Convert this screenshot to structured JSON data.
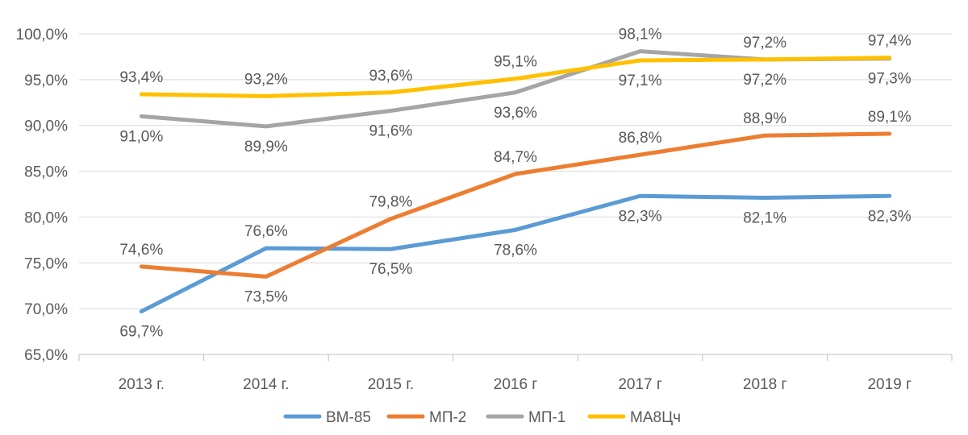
{
  "chart_data": {
    "type": "line",
    "categories": [
      "2013 г.",
      "2014 г.",
      "2015 г.",
      "2016 г",
      "2017 г",
      "2018 г",
      "2019 г"
    ],
    "ylim": [
      65,
      100
    ],
    "yticks": [
      65,
      70,
      75,
      80,
      85,
      90,
      95,
      100
    ],
    "ytick_labels": [
      "65,0%",
      "70,0%",
      "75,0%",
      "80,0%",
      "85,0%",
      "90,0%",
      "95,0%",
      "100,0%"
    ],
    "grid": true,
    "legend_position": "bottom",
    "series": [
      {
        "name": "ВМ-85",
        "color": "#5B9BD5",
        "values": [
          69.7,
          76.6,
          76.5,
          78.6,
          82.3,
          82.1,
          82.3
        ],
        "labels": [
          "69,7%",
          "76,6%",
          "76,5%",
          "78,6%",
          "82,3%",
          "82,1%",
          "82,3%"
        ],
        "label_pos": [
          "below",
          "above",
          "below",
          "below",
          "below",
          "below",
          "below"
        ]
      },
      {
        "name": "МП-2",
        "color": "#ED7D31",
        "values": [
          74.6,
          73.5,
          79.8,
          84.7,
          86.8,
          88.9,
          89.1
        ],
        "labels": [
          "74,6%",
          "73,5%",
          "79,8%",
          "84,7%",
          "86,8%",
          "88,9%",
          "89,1%"
        ],
        "label_pos": [
          "above",
          "below",
          "above",
          "above",
          "above",
          "above",
          "above"
        ]
      },
      {
        "name": "МП-1",
        "color": "#A5A5A5",
        "values": [
          91.0,
          89.9,
          91.6,
          93.6,
          98.1,
          97.2,
          97.3
        ],
        "labels": [
          "91,0%",
          "89,9%",
          "91,6%",
          "93,6%",
          "98,1%",
          "97,2%",
          "97,3%"
        ],
        "label_pos": [
          "below",
          "below",
          "below",
          "below",
          "above",
          "below",
          "below"
        ]
      },
      {
        "name": "МА8Цч",
        "color": "#FFC000",
        "values": [
          93.4,
          93.2,
          93.6,
          95.1,
          97.1,
          97.2,
          97.4
        ],
        "labels": [
          "93,4%",
          "93,2%",
          "93,6%",
          "95,1%",
          "97,1%",
          "97,2%",
          "97,4%"
        ],
        "label_pos": [
          "above",
          "above",
          "above",
          "above",
          "below",
          "above",
          "above"
        ]
      }
    ]
  }
}
